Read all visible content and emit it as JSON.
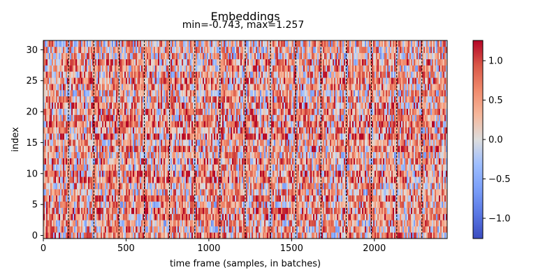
{
  "chart_data": {
    "type": "heatmap",
    "title": "Embeddings",
    "subtitle": "min=-0.743, max=1.257",
    "xlabel": "time frame (samples, in batches)",
    "ylabel": "index",
    "xlim": [
      0,
      2440
    ],
    "ylim": [
      -0.5,
      31.5
    ],
    "x_ticks": [
      0,
      500,
      1000,
      1500,
      2000
    ],
    "y_ticks": [
      0,
      5,
      10,
      15,
      20,
      25,
      30
    ],
    "rows": 32,
    "columns": 2440,
    "value_range": [
      -0.743,
      1.257
    ],
    "colormap": "coolwarm",
    "color_limits": [
      -1.257,
      1.257
    ],
    "batch_boundaries": [
      152,
      305,
      457,
      610,
      762,
      915,
      1067,
      1220,
      1372,
      1525,
      1677,
      1830,
      1982,
      2135,
      2287
    ],
    "colorbar": {
      "ticks": [
        1.0,
        0.5,
        0.0,
        -0.5,
        -1.0
      ],
      "tick_labels": [
        "1.0",
        "0.5",
        "0.0",
        "−0.5",
        "−1.0"
      ],
      "range": [
        -1.257,
        1.257
      ]
    },
    "grid": false
  }
}
